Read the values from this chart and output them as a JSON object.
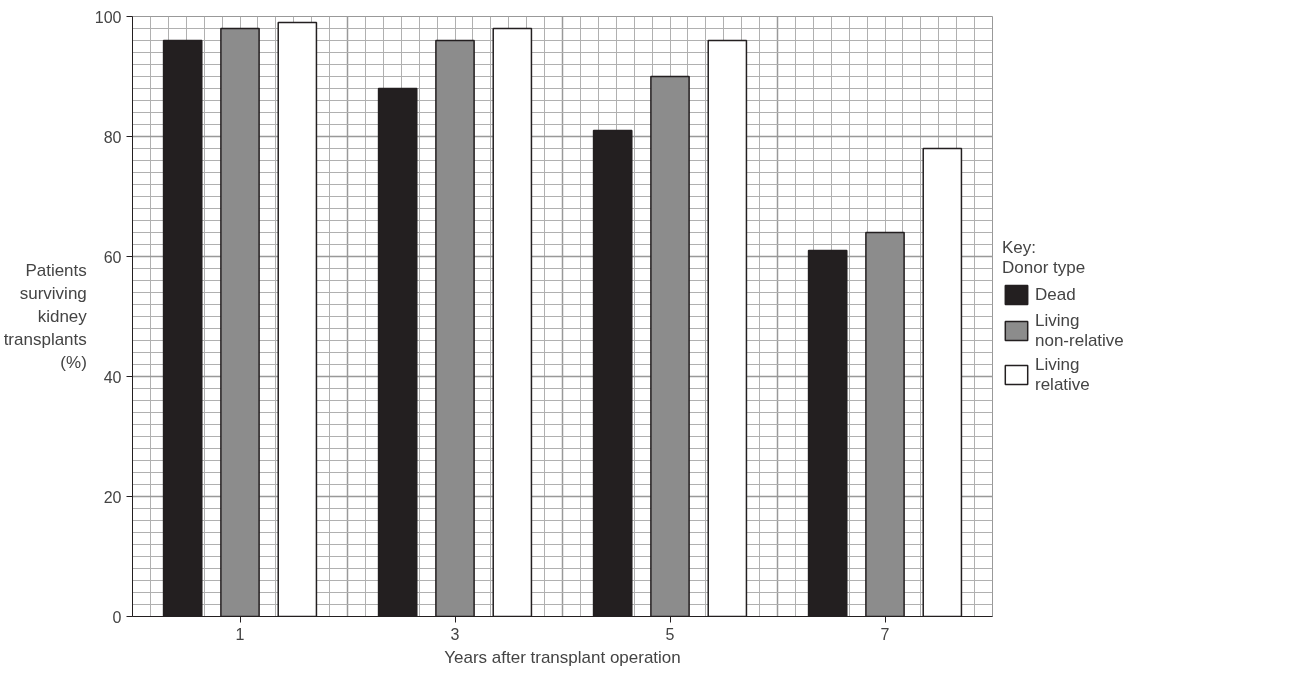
{
  "chart_data": {
    "type": "bar",
    "xlabel": "Years after transplant operation",
    "ylabel": "Patients surviving kidney transplants (%)",
    "legend_title": "Key: Donor type",
    "categories": [
      "1",
      "3",
      "5",
      "7"
    ],
    "series": [
      {
        "name": "Dead",
        "color": "#231f20",
        "values": [
          96,
          88,
          81,
          61
        ]
      },
      {
        "name": "Living non-relative",
        "color": "#8c8c8c",
        "values": [
          98,
          96,
          90,
          64
        ]
      },
      {
        "name": "Living relative",
        "color": "#ffffff",
        "values": [
          99,
          98,
          96,
          78
        ]
      }
    ],
    "ylim": [
      0,
      100
    ],
    "yticks": [
      0,
      20,
      40,
      60,
      80,
      100
    ],
    "grid": true,
    "legend": "right"
  }
}
